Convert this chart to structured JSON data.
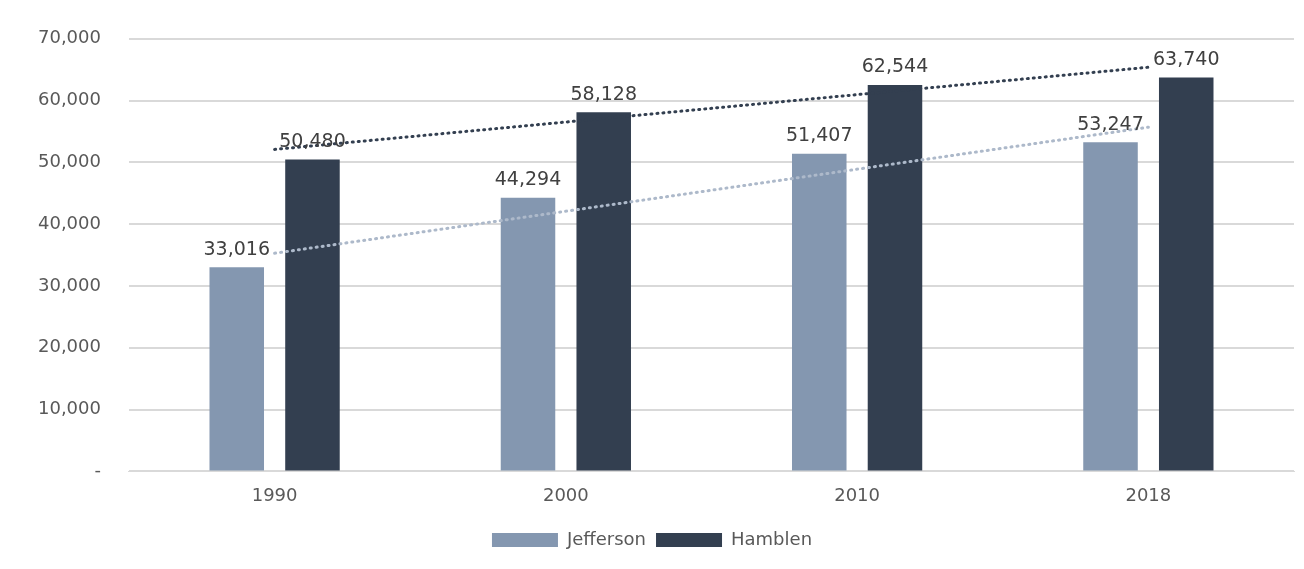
{
  "chart_data": {
    "type": "bar",
    "categories": [
      "1990",
      "2000",
      "2010",
      "2018"
    ],
    "series": [
      {
        "name": "Jefferson",
        "color": "#8497b0",
        "values": [
          33016,
          44294,
          51407,
          53247
        ],
        "value_labels": [
          "33,016",
          "44,294",
          "51,407",
          "53,247"
        ]
      },
      {
        "name": "Hamblen",
        "color": "#333f50",
        "values": [
          50480,
          58128,
          62544,
          63740
        ],
        "value_labels": [
          "50,480",
          "58,128",
          "62,544",
          "63,740"
        ]
      },
      {
        "type": "line",
        "color": "#adb9ca",
        "values": [
          35300,
          null,
          null,
          55700
        ],
        "line_style": "dotted",
        "marker": "none"
      },
      {
        "type": "line",
        "color": "#333f50",
        "values": [
          52100,
          null,
          null,
          65400
        ],
        "line_style": "dotted",
        "marker": "none"
      }
    ],
    "ylim": [
      0,
      70000
    ],
    "yticks": [
      {
        "value": 0,
        "label": "-"
      },
      {
        "value": 10000,
        "label": "10,000"
      },
      {
        "value": 20000,
        "label": "20,000"
      },
      {
        "value": 30000,
        "label": "30,000"
      },
      {
        "value": 40000,
        "label": "40,000"
      },
      {
        "value": 50000,
        "label": "50,000"
      },
      {
        "value": 60000,
        "label": "60,000"
      },
      {
        "value": 70000,
        "label": "70,000"
      }
    ],
    "grid": "y",
    "legend": "bottom"
  }
}
